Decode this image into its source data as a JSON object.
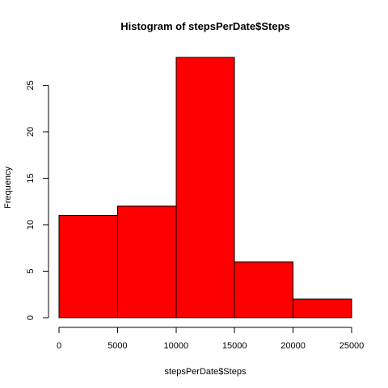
{
  "chart_data": {
    "type": "bar",
    "title": "Histogram of stepsPerDate$Steps",
    "xlabel": "stepsPerDate$Steps",
    "ylabel": "Frequency",
    "bins": [
      {
        "from": 0,
        "to": 5000,
        "count": 11
      },
      {
        "from": 5000,
        "to": 10000,
        "count": 12
      },
      {
        "from": 10000,
        "to": 15000,
        "count": 28
      },
      {
        "from": 15000,
        "to": 20000,
        "count": 6
      },
      {
        "from": 20000,
        "to": 25000,
        "count": 2
      }
    ],
    "xlim": [
      0,
      25000
    ],
    "ylim": [
      0,
      28
    ],
    "x_ticks": [
      "0",
      "5000",
      "10000",
      "15000",
      "20000",
      "25000"
    ],
    "y_ticks": [
      "0",
      "5",
      "10",
      "15",
      "20",
      "25"
    ],
    "bar_color": "#ff0000",
    "bar_border_color": "#000000",
    "grid": false
  }
}
